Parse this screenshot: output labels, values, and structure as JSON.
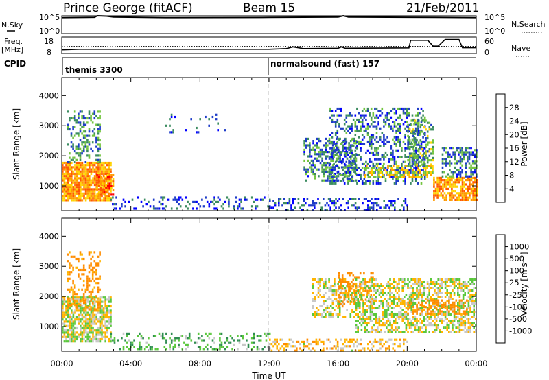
{
  "header": {
    "station": "Prince George (fitACF)",
    "beam": "Beam 15",
    "date": "21/Feb/2011"
  },
  "top_panels": {
    "nsky_label": "N.Sky",
    "nsearch_label": "N.Search",
    "freq_label_line1": "Freq.",
    "freq_label_line2": "[MHz]",
    "nave_label": "Nave",
    "cpid_label": "CPID",
    "nsky_ticks": [
      "10^5",
      "10^0"
    ],
    "nsearch_ticks": [
      "10^5",
      "10^0"
    ],
    "freq_ticks": [
      "18",
      "8"
    ],
    "nave_ticks": [
      "60",
      "0"
    ],
    "cpid_segments": [
      {
        "label": "themis 3300",
        "start_hour": 0
      },
      {
        "label": "normalsound (fast) 157",
        "start_hour": 12
      }
    ]
  },
  "power_panel": {
    "ylabel": "Slant Range [km]",
    "colorbar_label": "Power [dB]",
    "colorbar_ticks": [
      "28",
      "24",
      "20",
      "16",
      "12",
      "8",
      "4"
    ],
    "colorbar_colors": [
      "#ff0000",
      "#ff5a00",
      "#ff9a00",
      "#ffd200",
      "#72c43e",
      "#3c8c60",
      "#1e3cc8",
      "#0000ff"
    ]
  },
  "velocity_panel": {
    "ylabel": "Slant Range [km]",
    "colorbar_label": "Velocity [m s⁻¹]",
    "colorbar_ticks": [
      "1000",
      "500",
      "100",
      "25",
      "-25",
      "-100",
      "-500",
      "-1000"
    ],
    "colorbar_colors": [
      "#1414a0",
      "#1e64c8",
      "#2e8c50",
      "#5ac83c",
      "#c8c8c8",
      "#ffb400",
      "#ff8c00",
      "#ff5000",
      "#ff0000"
    ]
  },
  "chart_data": {
    "type": "heatmap",
    "xlabel": "Time UT",
    "x_range_hours": [
      0,
      24
    ],
    "x_ticks": [
      "00:00",
      "04:00",
      "08:00",
      "12:00",
      "16:00",
      "20:00",
      "00:00"
    ],
    "y_range_km": [
      180,
      4600
    ],
    "y_ticks": [
      "1000",
      "2000",
      "3000",
      "4000"
    ],
    "y_tick_values": [
      1000,
      2000,
      3000,
      4000
    ],
    "nsky_trace": [
      [
        0,
        0.9
      ],
      [
        1.9,
        0.92
      ],
      [
        2.05,
        1.0
      ],
      [
        2.6,
        0.98
      ],
      [
        3.0,
        0.93
      ],
      [
        6,
        0.9
      ],
      [
        12,
        0.91
      ],
      [
        16,
        0.93
      ],
      [
        16.3,
        1.0
      ],
      [
        16.6,
        0.93
      ],
      [
        20,
        0.92
      ],
      [
        24,
        0.9
      ]
    ],
    "freq_trace": [
      [
        0,
        10.2
      ],
      [
        1,
        10.6
      ],
      [
        12,
        10.6
      ],
      [
        13,
        11.0
      ],
      [
        13.4,
        12.0
      ],
      [
        14,
        11.0
      ],
      [
        16,
        11.2
      ],
      [
        16.2,
        12.0
      ],
      [
        16.4,
        11.2
      ],
      [
        20.1,
        11.4
      ],
      [
        20.2,
        16.0
      ],
      [
        21.2,
        16.0
      ],
      [
        21.5,
        12.5
      ],
      [
        21.8,
        12.5
      ],
      [
        22.2,
        16.5
      ],
      [
        23.0,
        16.5
      ],
      [
        23.2,
        11.5
      ],
      [
        24,
        11.5
      ]
    ],
    "nave_trace": [
      [
        0,
        26
      ],
      [
        24,
        26
      ]
    ],
    "power_echoes": [
      {
        "t": [
          0.0,
          2.8
        ],
        "r": [
          500,
          1800
        ],
        "db": 22,
        "density": 0.85
      },
      {
        "t": [
          0.3,
          2.2
        ],
        "r": [
          1800,
          3500
        ],
        "db": 10,
        "density": 0.35
      },
      {
        "t": [
          2.0,
          3.0
        ],
        "r": [
          700,
          1400
        ],
        "db": 24,
        "density": 0.7
      },
      {
        "t": [
          2.8,
          12.0
        ],
        "r": [
          250,
          650
        ],
        "db": 6,
        "density": 0.22
      },
      {
        "t": [
          12.0,
          20.0
        ],
        "r": [
          220,
          600
        ],
        "db": 5,
        "density": 0.35
      },
      {
        "t": [
          6.0,
          9.5
        ],
        "r": [
          2800,
          3400
        ],
        "db": 6,
        "density": 0.08
      },
      {
        "t": [
          14.0,
          17.0
        ],
        "r": [
          1200,
          2600
        ],
        "db": 9,
        "density": 0.45
      },
      {
        "t": [
          15.5,
          21.0
        ],
        "r": [
          1100,
          3600
        ],
        "db": 8,
        "density": 0.35
      },
      {
        "t": [
          17.5,
          21.5
        ],
        "r": [
          1300,
          1700
        ],
        "db": 18,
        "density": 0.5
      },
      {
        "t": [
          20.0,
          21.5
        ],
        "r": [
          1700,
          3200
        ],
        "db": 12,
        "density": 0.45
      },
      {
        "t": [
          21.5,
          24.0
        ],
        "r": [
          500,
          1300
        ],
        "db": 22,
        "density": 0.75
      },
      {
        "t": [
          22.0,
          24.0
        ],
        "r": [
          1300,
          2300
        ],
        "db": 9,
        "density": 0.5
      }
    ],
    "velocity_echoes": [
      {
        "t": [
          0.0,
          2.8
        ],
        "r": [
          500,
          2000
        ],
        "v": 0,
        "density": 0.75
      },
      {
        "t": [
          0.3,
          2.2
        ],
        "r": [
          1600,
          3500
        ],
        "v": -150,
        "density": 0.3
      },
      {
        "t": [
          2.8,
          12.0
        ],
        "r": [
          250,
          800
        ],
        "v": 80,
        "density": 0.25
      },
      {
        "t": [
          12.0,
          20.0
        ],
        "r": [
          220,
          600
        ],
        "v": -60,
        "density": 0.35
      },
      {
        "t": [
          14.5,
          17.0
        ],
        "r": [
          1300,
          2600
        ],
        "v": 0,
        "density": 0.45
      },
      {
        "t": [
          16.0,
          18.0
        ],
        "r": [
          1700,
          2800
        ],
        "v": -350,
        "density": 0.35
      },
      {
        "t": [
          17.0,
          24.0
        ],
        "r": [
          800,
          2600
        ],
        "v": 0,
        "density": 0.55
      },
      {
        "t": [
          20.0,
          23.5
        ],
        "r": [
          1400,
          1900
        ],
        "v": -200,
        "density": 0.35
      }
    ]
  }
}
